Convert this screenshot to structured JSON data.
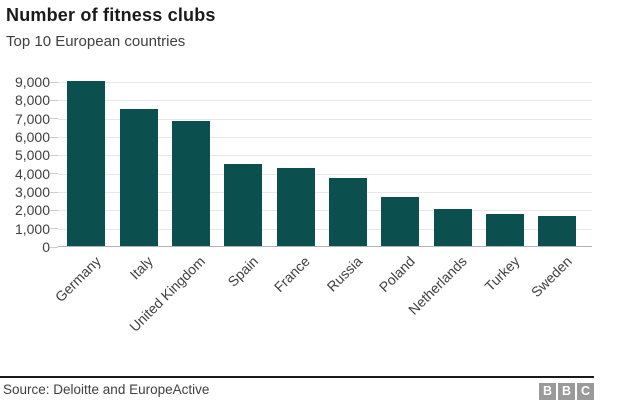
{
  "header": {
    "title": "Number of fitness clubs",
    "subtitle": "Top 10 European countries"
  },
  "chart_data": {
    "type": "bar",
    "title": "Number of fitness clubs",
    "subtitle": "Top 10 European countries",
    "categories": [
      "Germany",
      "Italy",
      "United Kingdom",
      "Spain",
      "France",
      "Russia",
      "Poland",
      "Netherlands",
      "Turkey",
      "Sweden"
    ],
    "values": [
      9000,
      7500,
      6800,
      4500,
      4250,
      3700,
      2650,
      2000,
      1750,
      1650
    ],
    "xlabel": "",
    "ylabel": "",
    "ylim": [
      0,
      9000
    ],
    "ytick_step": 1000,
    "ytick_labels": [
      "0",
      "1,000",
      "2,000",
      "3,000",
      "4,000",
      "5,000",
      "6,000",
      "7,000",
      "8,000",
      "9,000"
    ],
    "grid": true,
    "legend": false,
    "bar_color": "#0b4f4f"
  },
  "footer": {
    "source": "Source: Deloitte and EuropeActive",
    "logo_letters": [
      "B",
      "B",
      "C"
    ]
  },
  "colors": {
    "bar": "#0b4f4f",
    "gridline": "#e8e8e8",
    "axis_line": "#b3b3b3",
    "text": "#404040",
    "title_text": "#1a1a1a",
    "logo_block": "#9a9a9a",
    "footer_rule": "#1a1a1a"
  }
}
